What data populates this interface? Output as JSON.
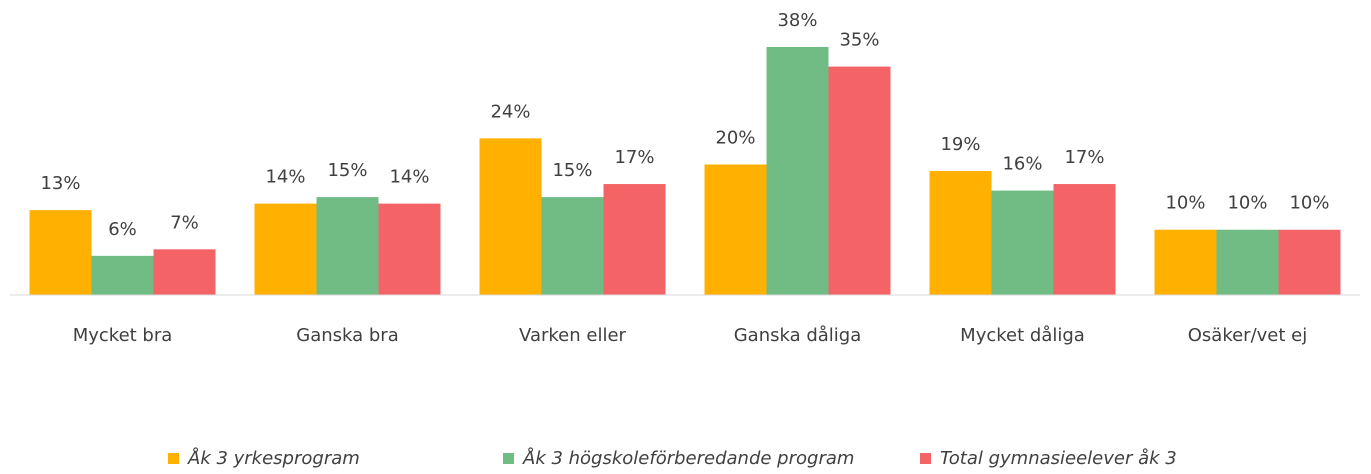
{
  "chart_data": {
    "type": "bar",
    "categories": [
      "Mycket bra",
      "Ganska bra",
      "Varken eller",
      "Ganska dåliga",
      "Mycket dåliga",
      "Osäker/vet ej"
    ],
    "series": [
      {
        "name": "Åk 3 yrkesprogram",
        "color": "#FFB000",
        "values": [
          13,
          14,
          24,
          20,
          19,
          10
        ],
        "value_labels": [
          "13%",
          "14%",
          "24%",
          "20%",
          "19%",
          "10%"
        ]
      },
      {
        "name": "Åk 3 högskoleförberedande program",
        "color": "#70BC84",
        "values": [
          6,
          15,
          15,
          38,
          16,
          10
        ],
        "value_labels": [
          "6%",
          "15%",
          "15%",
          "38%",
          "16%",
          "10%"
        ]
      },
      {
        "name": "Total gymnasieelever åk 3",
        "color": "#F46366",
        "values": [
          7,
          14,
          17,
          35,
          17,
          10
        ],
        "value_labels": [
          "7%",
          "14%",
          "17%",
          "35%",
          "17%",
          "10%"
        ]
      }
    ],
    "legend": "bottom"
  }
}
